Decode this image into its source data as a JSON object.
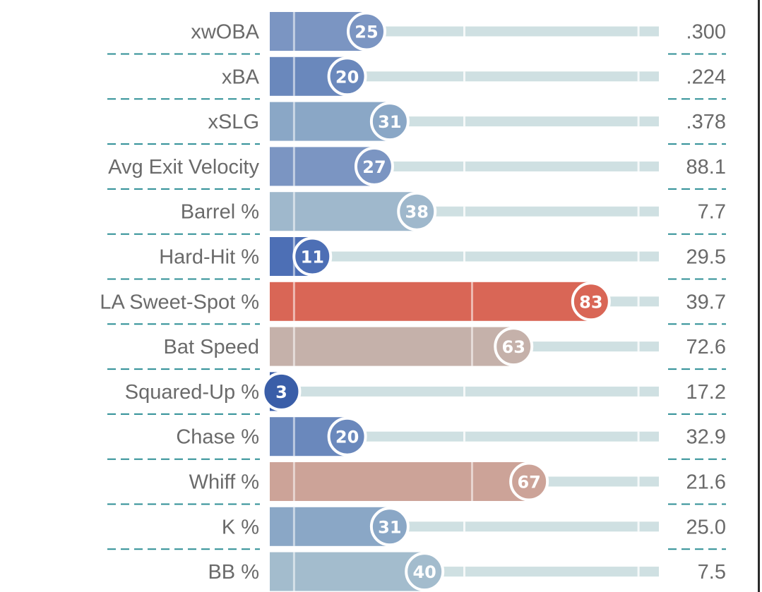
{
  "chart_data": {
    "type": "bar",
    "orientation": "horizontal",
    "title": "",
    "xlim": [
      0,
      100
    ],
    "categories": [
      "xwOBA",
      "xBA",
      "xSLG",
      "Avg Exit Velocity",
      "Barrel %",
      "Hard-Hit %",
      "LA Sweet-Spot %",
      "Bat Speed",
      "Squared-Up %",
      "Chase %",
      "Whiff %",
      "K %",
      "BB %"
    ],
    "percentiles": [
      25,
      20,
      31,
      27,
      38,
      11,
      83,
      63,
      3,
      20,
      67,
      31,
      40
    ],
    "stat_values": [
      ".300",
      ".224",
      ".378",
      "88.1",
      "7.7",
      "29.5",
      "39.7",
      "72.6",
      "17.2",
      "32.9",
      "21.6",
      "25.0",
      "7.5"
    ],
    "colors": [
      "#7b95c2",
      "#6a88bc",
      "#8aa7c6",
      "#7b95c2",
      "#9fb8cc",
      "#4d6fb5",
      "#d96656",
      "#c5b1aa",
      "#3a5ea8",
      "#6a88bc",
      "#cca398",
      "#8aa7c6",
      "#a3bccd"
    ]
  }
}
